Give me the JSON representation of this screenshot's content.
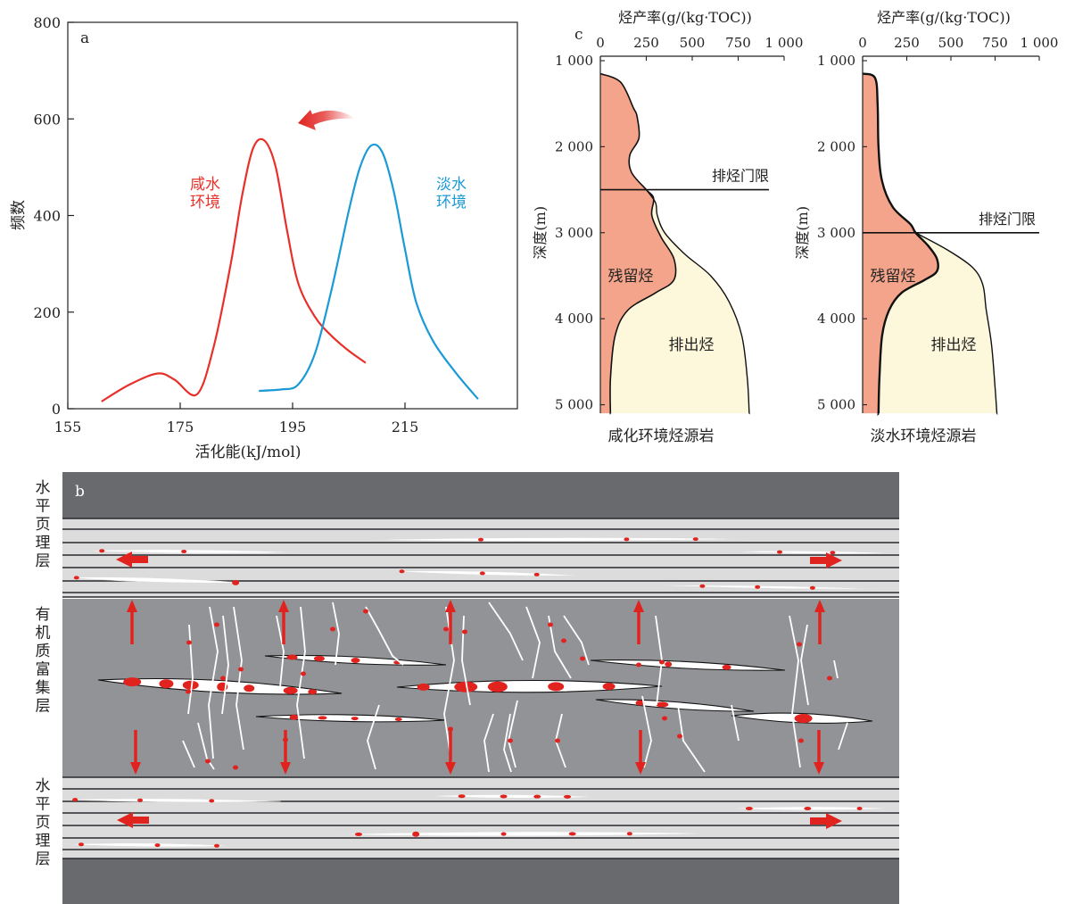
{
  "chart_data": [
    {
      "panel": "a",
      "type": "line",
      "panel_label": "a",
      "xlabel": "活化能(kJ/mol)",
      "ylabel": "频数",
      "xlim": [
        155,
        235
      ],
      "ylim": [
        0,
        800
      ],
      "xticks": [
        155,
        175,
        195,
        215
      ],
      "yticks": [
        0,
        200,
        400,
        600,
        800
      ],
      "series": [
        {
          "name": "咸水环境",
          "label_lines": [
            "咸水",
            "环境"
          ],
          "color": "#e8302a",
          "x": [
            161,
            166,
            171,
            174,
            178,
            181,
            184,
            186,
            188,
            190,
            192,
            194,
            196,
            199,
            202,
            205,
            208
          ],
          "y": [
            15,
            50,
            73,
            60,
            30,
            130,
            300,
            440,
            540,
            555,
            500,
            370,
            260,
            190,
            150,
            120,
            95
          ]
        },
        {
          "name": "淡水环境",
          "label_lines": [
            "淡水",
            "环境"
          ],
          "color": "#1a9ad6",
          "x": [
            189,
            193,
            196,
            199,
            202,
            205,
            207,
            209,
            211,
            213,
            215,
            217,
            220,
            224,
            228
          ],
          "y": [
            37,
            40,
            50,
            115,
            250,
            410,
            500,
            545,
            530,
            450,
            330,
            220,
            140,
            75,
            20
          ]
        }
      ]
    },
    {
      "panel": "c",
      "type": "area",
      "panel_label": "c",
      "subplots": [
        {
          "title": "咸化环境烃源岩",
          "top_label": "烃产率(g/(kg·TOC))",
          "ylabel": "深度(m)",
          "xticks": [
            "0",
            "250",
            "500",
            "750",
            "1 000"
          ],
          "yticks": [
            "1 000",
            "2 000",
            "3 000",
            "4 000",
            "5 000"
          ],
          "xlim": [
            0,
            1000
          ],
          "ylim_depth": [
            1000,
            5150
          ],
          "threshold_label": "排烃门限",
          "threshold_depth": 2500,
          "residual_label": "残留烃",
          "expelled_label": "排出烃",
          "residual": {
            "depth": [
              1150,
              1250,
              1550,
              1650,
              1900,
              2100,
              2300,
              2500,
              2600,
              2800,
              3050,
              3300,
              3550,
              3700,
              3900,
              4200,
              4700,
              5100
            ],
            "value": [
              0,
              110,
              180,
              200,
              210,
              160,
              170,
              250,
              290,
              280,
              330,
              400,
              400,
              300,
              150,
              80,
              55,
              55
            ]
          },
          "total": {
            "depth": [
              2500,
              2650,
              2800,
              3000,
              3250,
              3500,
              3800,
              4200,
              4700,
              5100
            ],
            "value": [
              250,
              300,
              310,
              350,
              460,
              600,
              700,
              770,
              800,
              810
            ]
          }
        },
        {
          "title": "淡水环境烃源岩",
          "top_label": "烃产率(g/(kg·TOC))",
          "ylabel": "深度(m)",
          "xticks": [
            "0",
            "250",
            "500",
            "750",
            "1 000"
          ],
          "yticks": [
            "1 000",
            "2 000",
            "3 000",
            "4 000",
            "5 000"
          ],
          "xlim": [
            0,
            1000
          ],
          "ylim_depth": [
            1000,
            5150
          ],
          "threshold_label": "排烃门限",
          "threshold_depth": 3000,
          "residual_label": "残留烃",
          "expelled_label": "排出烃",
          "residual": {
            "depth": [
              1150,
              1200,
              1500,
              2000,
              2400,
              2700,
              2900,
              3000,
              3150,
              3300,
              3450,
              3550,
              3700,
              3900,
              4200,
              4700,
              5100
            ],
            "value": [
              0,
              70,
              85,
              90,
              110,
              170,
              270,
              300,
              370,
              420,
              420,
              350,
              220,
              150,
              110,
              95,
              90
            ],
            "smooth": false
          },
          "total": {
            "depth": [
              3000,
              3200,
              3400,
              3600,
              3900,
              4300,
              4800,
              5100
            ],
            "value": [
              300,
              480,
              620,
              680,
              700,
              730,
              750,
              760
            ]
          }
        }
      ]
    }
  ],
  "panel_b": {
    "panel_label": "b",
    "upper_layer_label": [
      "水",
      "平",
      "页",
      "理",
      "层"
    ],
    "middle_layer_label": [
      "有",
      "机",
      "质",
      "富",
      "集",
      "层"
    ],
    "lower_layer_label": [
      "水",
      "平",
      "页",
      "理",
      "层"
    ],
    "colors": {
      "dark_band": "#696a6e",
      "light_band": "#dcdcdc",
      "organic_layer": "#929397",
      "hydrocarbon": "#e1231f",
      "fracture": "#ffffff"
    }
  },
  "colors": {
    "residual_fill": "#f4a48a",
    "expelled_fill": "#fdf8dc",
    "red_arrow": "#e1231f",
    "saline_curve": "#e8302a",
    "fresh_curve": "#1a9ad6"
  }
}
